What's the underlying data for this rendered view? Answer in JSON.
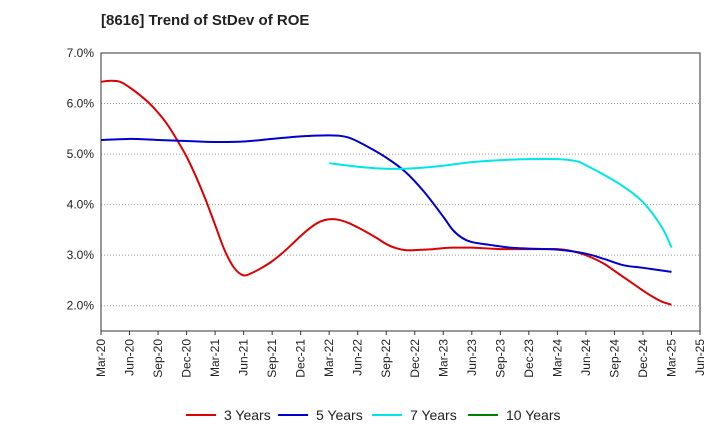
{
  "chart_data": {
    "type": "line",
    "title": "[8616]  Trend of StDev of ROE",
    "xlabel": "",
    "ylabel": "",
    "x_range": [
      "2020-03",
      "2025-06"
    ],
    "ylim": [
      1.5,
      7.0
    ],
    "y_ticks": [
      2.0,
      3.0,
      4.0,
      5.0,
      6.0,
      7.0
    ],
    "y_tick_labels": [
      "2.0%",
      "3.0%",
      "4.0%",
      "5.0%",
      "6.0%",
      "7.0%"
    ],
    "x_ticks": [
      "2020-03",
      "2020-06",
      "2020-09",
      "2020-12",
      "2021-03",
      "2021-06",
      "2021-09",
      "2021-12",
      "2022-03",
      "2022-06",
      "2022-09",
      "2022-12",
      "2023-03",
      "2023-06",
      "2023-09",
      "2023-12",
      "2024-03",
      "2024-06",
      "2024-09",
      "2024-12",
      "2025-03",
      "2025-06"
    ],
    "x_tick_labels": [
      "Mar-20",
      "Jun-20",
      "Sep-20",
      "Dec-20",
      "Mar-21",
      "Jun-21",
      "Sep-21",
      "Dec-21",
      "Mar-22",
      "Jun-22",
      "Sep-22",
      "Dec-22",
      "Mar-23",
      "Jun-23",
      "Sep-23",
      "Dec-23",
      "Mar-24",
      "Jun-24",
      "Sep-24",
      "Dec-24",
      "Mar-25",
      "Jun-25"
    ],
    "grid": "horizontal dotted",
    "legend_position": "bottom",
    "series": [
      {
        "name": "3 Years",
        "color": "#dd0000",
        "points": [
          [
            "2020-03",
            6.43
          ],
          [
            "2020-04",
            6.45
          ],
          [
            "2020-05",
            6.43
          ],
          [
            "2020-06",
            6.32
          ],
          [
            "2020-07",
            6.18
          ],
          [
            "2020-08",
            6.02
          ],
          [
            "2020-09",
            5.82
          ],
          [
            "2020-10",
            5.58
          ],
          [
            "2020-11",
            5.28
          ],
          [
            "2020-12",
            4.95
          ],
          [
            "2021-01",
            4.55
          ],
          [
            "2021-02",
            4.1
          ],
          [
            "2021-03",
            3.6
          ],
          [
            "2021-04",
            3.1
          ],
          [
            "2021-05",
            2.75
          ],
          [
            "2021-06",
            2.6
          ],
          [
            "2021-07",
            2.66
          ],
          [
            "2021-08",
            2.76
          ],
          [
            "2021-09",
            2.88
          ],
          [
            "2021-10",
            3.03
          ],
          [
            "2021-11",
            3.2
          ],
          [
            "2021-12",
            3.38
          ],
          [
            "2022-01",
            3.54
          ],
          [
            "2022-02",
            3.66
          ],
          [
            "2022-03",
            3.71
          ],
          [
            "2022-04",
            3.7
          ],
          [
            "2022-05",
            3.64
          ],
          [
            "2022-06",
            3.55
          ],
          [
            "2022-07",
            3.45
          ],
          [
            "2022-08",
            3.34
          ],
          [
            "2022-09",
            3.22
          ],
          [
            "2022-10",
            3.14
          ],
          [
            "2022-11",
            3.1
          ],
          [
            "2022-12",
            3.1
          ],
          [
            "2023-01",
            3.11
          ],
          [
            "2023-02",
            3.12
          ],
          [
            "2023-03",
            3.14
          ],
          [
            "2023-04",
            3.15
          ],
          [
            "2023-05",
            3.15
          ],
          [
            "2023-06",
            3.15
          ],
          [
            "2023-07",
            3.14
          ],
          [
            "2023-08",
            3.13
          ],
          [
            "2023-09",
            3.12
          ],
          [
            "2023-10",
            3.12
          ],
          [
            "2023-11",
            3.12
          ],
          [
            "2023-12",
            3.12
          ],
          [
            "2024-01",
            3.12
          ],
          [
            "2024-02",
            3.12
          ],
          [
            "2024-03",
            3.12
          ],
          [
            "2024-04",
            3.1
          ],
          [
            "2024-05",
            3.06
          ],
          [
            "2024-06",
            3.0
          ],
          [
            "2024-07",
            2.92
          ],
          [
            "2024-08",
            2.82
          ],
          [
            "2024-09",
            2.69
          ],
          [
            "2024-10",
            2.56
          ],
          [
            "2024-11",
            2.43
          ],
          [
            "2024-12",
            2.3
          ],
          [
            "2025-01",
            2.18
          ],
          [
            "2025-02",
            2.08
          ],
          [
            "2025-03",
            2.02
          ]
        ]
      },
      {
        "name": "5 Years",
        "color": "#0000cc",
        "points": [
          [
            "2020-03",
            5.28
          ],
          [
            "2020-06",
            5.3
          ],
          [
            "2020-09",
            5.28
          ],
          [
            "2020-12",
            5.26
          ],
          [
            "2021-03",
            5.24
          ],
          [
            "2021-06",
            5.25
          ],
          [
            "2021-09",
            5.3
          ],
          [
            "2021-12",
            5.35
          ],
          [
            "2022-03",
            5.37
          ],
          [
            "2022-05",
            5.33
          ],
          [
            "2022-07",
            5.15
          ],
          [
            "2022-09",
            4.93
          ],
          [
            "2022-11",
            4.65
          ],
          [
            "2023-01",
            4.25
          ],
          [
            "2023-03",
            3.76
          ],
          [
            "2023-04",
            3.5
          ],
          [
            "2023-05",
            3.34
          ],
          [
            "2023-06",
            3.26
          ],
          [
            "2023-08",
            3.2
          ],
          [
            "2023-10",
            3.15
          ],
          [
            "2023-12",
            3.13
          ],
          [
            "2024-03",
            3.11
          ],
          [
            "2024-06",
            3.03
          ],
          [
            "2024-08",
            2.92
          ],
          [
            "2024-10",
            2.8
          ],
          [
            "2024-12",
            2.75
          ],
          [
            "2025-03",
            2.67
          ]
        ]
      },
      {
        "name": "7 Years",
        "color": "#00e5e5",
        "points": [
          [
            "2022-03",
            4.82
          ],
          [
            "2022-06",
            4.75
          ],
          [
            "2022-09",
            4.71
          ],
          [
            "2022-12",
            4.72
          ],
          [
            "2023-03",
            4.77
          ],
          [
            "2023-06",
            4.84
          ],
          [
            "2023-09",
            4.88
          ],
          [
            "2023-12",
            4.9
          ],
          [
            "2024-03",
            4.9
          ],
          [
            "2024-05",
            4.86
          ],
          [
            "2024-06",
            4.78
          ],
          [
            "2024-08",
            4.58
          ],
          [
            "2024-10",
            4.35
          ],
          [
            "2024-12",
            4.05
          ],
          [
            "2025-02",
            3.55
          ],
          [
            "2025-03",
            3.15
          ]
        ]
      },
      {
        "name": "10 Years",
        "color": "#008000",
        "points": []
      }
    ]
  }
}
